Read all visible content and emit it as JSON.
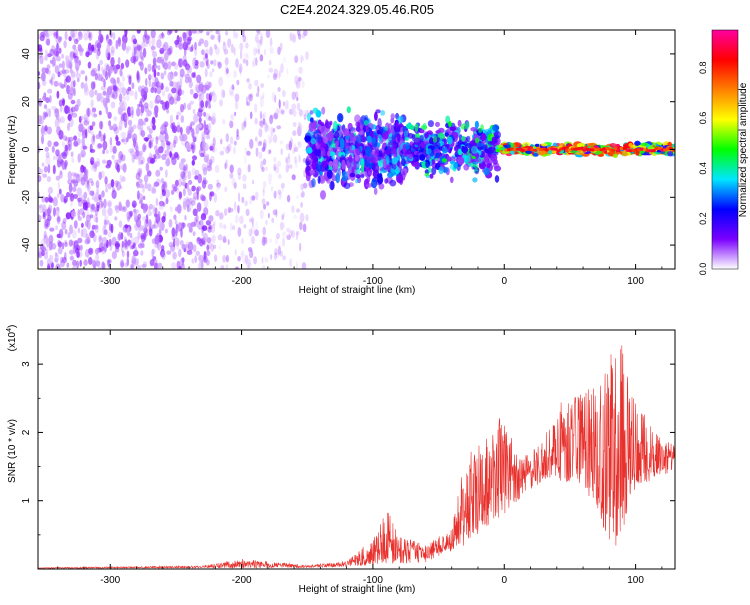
{
  "title": "C2E4.2024.329.05.46.R05",
  "colors": {
    "snr_line": "#e8302c",
    "grid": "#000000",
    "background": "#ffffff"
  },
  "chart_data": [
    {
      "type": "heatmap",
      "xlabel": "Height of straight line (km)",
      "ylabel": "Frequency (Hz)",
      "xlim": [
        -355,
        130
      ],
      "ylim": [
        -50,
        50
      ],
      "xticks": [
        -300,
        -200,
        -100,
        0,
        100
      ],
      "yticks": [
        -40,
        -20,
        0,
        20,
        40
      ],
      "colorbar": {
        "label": "Normalized spectral amplitude",
        "range": [
          0,
          0.95
        ],
        "ticks": [
          "0.0",
          "0.2",
          "0.4",
          "0.6",
          "0.8"
        ],
        "tick_values": [
          0.0,
          0.2,
          0.4,
          0.6,
          0.8
        ],
        "colormap": [
          "#ffffff",
          "#7a00ff",
          "#0000ff",
          "#00e6ff",
          "#00ff00",
          "#ffff00",
          "#ff8000",
          "#ff0000",
          "#ff00a0"
        ]
      },
      "regions": [
        {
          "x_range": [
            -355,
            -222
          ],
          "freq_range": [
            -50,
            50
          ],
          "level": "noise-dense"
        },
        {
          "x_range": [
            -222,
            -150
          ],
          "freq_range": [
            -50,
            50
          ],
          "level": "noise-sparse"
        },
        {
          "x_range": [
            -150,
            -75
          ],
          "freq_range": [
            -20,
            20
          ],
          "level": "signal-broad"
        },
        {
          "x_range": [
            -75,
            -5
          ],
          "freq_range": [
            -15,
            15
          ],
          "level": "signal-medium"
        },
        {
          "x_range": [
            -5,
            130
          ],
          "freq_range": [
            -3,
            3
          ],
          "level": "signal-narrow"
        }
      ]
    },
    {
      "type": "line",
      "xlabel": "Height of straight line (km)",
      "ylabel": "SNR (10 * v/v)",
      "multiplier": "(x10",
      "multiplier_exp": "4",
      "multiplier_close": ")",
      "xlim": [
        -355,
        130
      ],
      "ylim": [
        0,
        3.5
      ],
      "xticks": [
        -300,
        -200,
        -100,
        0,
        100
      ],
      "yticks": [
        1,
        2,
        3
      ],
      "envelope": [
        {
          "x": -355,
          "y": 0.02
        },
        {
          "x": -230,
          "y": 0.05
        },
        {
          "x": -200,
          "y": 0.15
        },
        {
          "x": -150,
          "y": 0.06
        },
        {
          "x": -120,
          "y": 0.12
        },
        {
          "x": -100,
          "y": 0.45
        },
        {
          "x": -90,
          "y": 0.9
        },
        {
          "x": -80,
          "y": 0.5
        },
        {
          "x": -60,
          "y": 0.35
        },
        {
          "x": -40,
          "y": 0.6
        },
        {
          "x": -30,
          "y": 1.6
        },
        {
          "x": -20,
          "y": 1.9
        },
        {
          "x": -10,
          "y": 2.3
        },
        {
          "x": 0,
          "y": 2.2
        },
        {
          "x": 10,
          "y": 1.7
        },
        {
          "x": 25,
          "y": 1.8
        },
        {
          "x": 40,
          "y": 2.4
        },
        {
          "x": 55,
          "y": 2.6
        },
        {
          "x": 70,
          "y": 2.7
        },
        {
          "x": 80,
          "y": 3.2
        },
        {
          "x": 90,
          "y": 3.4
        },
        {
          "x": 100,
          "y": 2.5
        },
        {
          "x": 115,
          "y": 2.0
        },
        {
          "x": 130,
          "y": 1.8
        }
      ],
      "baseline": [
        {
          "x": -355,
          "y": 0.01
        },
        {
          "x": -150,
          "y": 0.02
        },
        {
          "x": -100,
          "y": 0.05
        },
        {
          "x": -60,
          "y": 0.1
        },
        {
          "x": -30,
          "y": 0.35
        },
        {
          "x": -10,
          "y": 0.6
        },
        {
          "x": 10,
          "y": 1.0
        },
        {
          "x": 30,
          "y": 1.3
        },
        {
          "x": 60,
          "y": 1.25
        },
        {
          "x": 85,
          "y": 0.2
        },
        {
          "x": 100,
          "y": 1.2
        },
        {
          "x": 130,
          "y": 1.45
        }
      ]
    }
  ]
}
